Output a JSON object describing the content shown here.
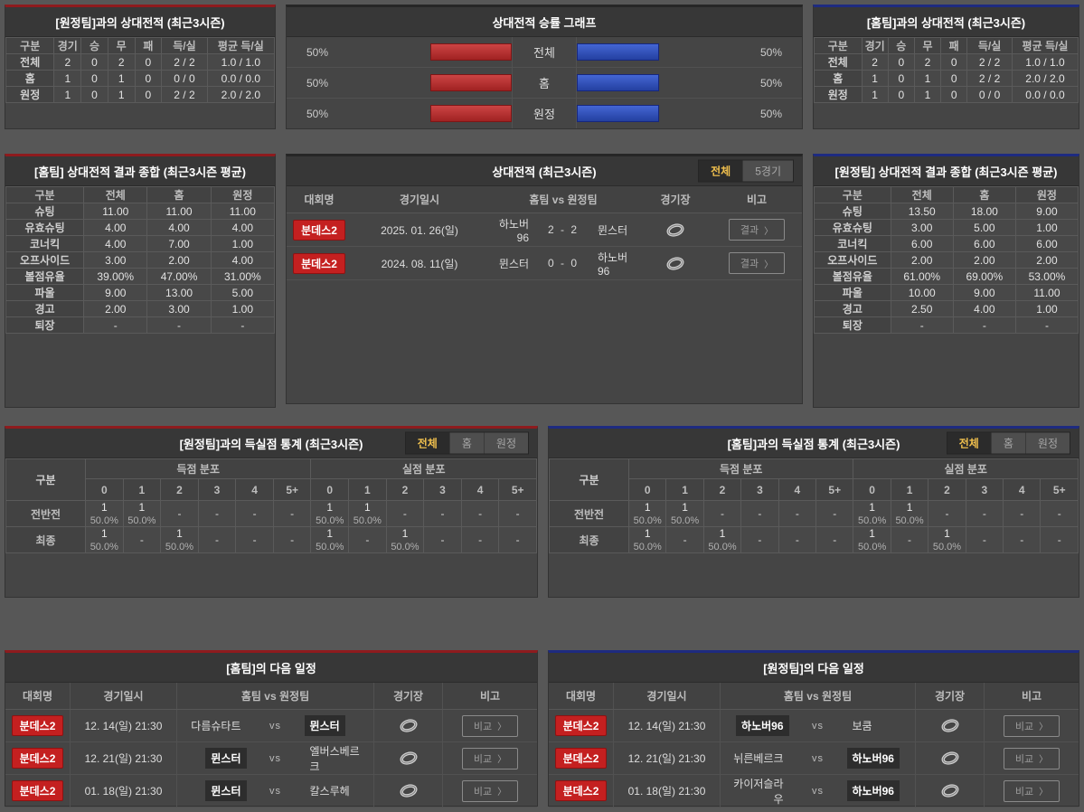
{
  "ui": {
    "chevron": "〉"
  },
  "colors": {
    "accent_red": "#8e1b1e",
    "accent_blue": "#1e2b80",
    "bar_red": "#b93030",
    "bar_blue": "#2f55c0",
    "badge_red": "#c42020",
    "tab_active_text": "#eebe4d"
  },
  "top_left": {
    "title": "[원정팀]과의 상대전적 (최근3시즌)",
    "headers": [
      "구분",
      "경기",
      "승",
      "무",
      "패",
      "득/실",
      "평균 득/실"
    ],
    "rows": [
      {
        "label": "전체",
        "cells": [
          "2",
          "0",
          "2",
          "0",
          "2 / 2",
          "1.0 / 1.0"
        ]
      },
      {
        "label": "홈",
        "cells": [
          "1",
          "0",
          "1",
          "0",
          "0 / 0",
          "0.0 / 0.0"
        ]
      },
      {
        "label": "원정",
        "cells": [
          "1",
          "0",
          "1",
          "0",
          "2 / 2",
          "2.0 / 2.0"
        ]
      }
    ]
  },
  "winrate_chart": {
    "title": "상대전적 승률 그래프",
    "type": "bar",
    "rows": [
      {
        "label": "전체",
        "left_label": "50%",
        "left_value": 50,
        "right_value": 50,
        "right_label": "50%"
      },
      {
        "label": "홈",
        "left_label": "50%",
        "left_value": 50,
        "right_value": 50,
        "right_label": "50%"
      },
      {
        "label": "원정",
        "left_label": "50%",
        "left_value": 50,
        "right_value": 50,
        "right_label": "50%"
      }
    ]
  },
  "top_right": {
    "title": "[홈팀]과의 상대전적 (최근3시즌)",
    "headers": [
      "구분",
      "경기",
      "승",
      "무",
      "패",
      "득/실",
      "평균 득/실"
    ],
    "rows": [
      {
        "label": "전체",
        "cells": [
          "2",
          "0",
          "2",
          "0",
          "2 / 2",
          "1.0 / 1.0"
        ]
      },
      {
        "label": "홈",
        "cells": [
          "1",
          "0",
          "1",
          "0",
          "2 / 2",
          "2.0 / 2.0"
        ]
      },
      {
        "label": "원정",
        "cells": [
          "1",
          "0",
          "1",
          "0",
          "0 / 0",
          "0.0 / 0.0"
        ]
      }
    ]
  },
  "home_summary": {
    "title": "[홈팀] 상대전적 결과 종합 (최근3시즌 평균)",
    "headers": [
      "구분",
      "전체",
      "홈",
      "원정"
    ],
    "rows": [
      {
        "label": "슈팅",
        "cells": [
          "11.00",
          "11.00",
          "11.00"
        ]
      },
      {
        "label": "유효슈팅",
        "cells": [
          "4.00",
          "4.00",
          "4.00"
        ]
      },
      {
        "label": "코너킥",
        "cells": [
          "4.00",
          "7.00",
          "1.00"
        ]
      },
      {
        "label": "오프사이드",
        "cells": [
          "3.00",
          "2.00",
          "4.00"
        ]
      },
      {
        "label": "볼점유율",
        "cells": [
          "39.00%",
          "47.00%",
          "31.00%"
        ]
      },
      {
        "label": "파울",
        "cells": [
          "9.00",
          "13.00",
          "5.00"
        ]
      },
      {
        "label": "경고",
        "cells": [
          "2.00",
          "3.00",
          "1.00"
        ]
      },
      {
        "label": "퇴장",
        "cells": [
          "-",
          "-",
          "-"
        ]
      }
    ]
  },
  "matches": {
    "title": "상대전적 (최근3시즌)",
    "tabs": [
      {
        "label": "전체",
        "name": "tab-all",
        "active": true
      },
      {
        "label": "5경기",
        "name": "tab-5games",
        "active": false
      }
    ],
    "headers": {
      "league": "대회명",
      "datetime": "경기일시",
      "teams": "홈팀  vs  원정팀",
      "stadium": "경기장",
      "note": "비고"
    },
    "rows": [
      {
        "league": "분데스2",
        "datetime": "2025. 01. 26(일)",
        "home": "하노버96",
        "score": "2 - 2",
        "away": "뮌스터",
        "button": "결과"
      },
      {
        "league": "분데스2",
        "datetime": "2024. 08. 11(일)",
        "home": "뮌스터",
        "score": "0 - 0",
        "away": "하노버96",
        "button": "결과"
      }
    ]
  },
  "away_summary": {
    "title": "[원정팀] 상대전적 결과 종합 (최근3시즌 평균)",
    "headers": [
      "구분",
      "전체",
      "홈",
      "원정"
    ],
    "rows": [
      {
        "label": "슈팅",
        "cells": [
          "13.50",
          "18.00",
          "9.00"
        ]
      },
      {
        "label": "유효슈팅",
        "cells": [
          "3.00",
          "5.00",
          "1.00"
        ]
      },
      {
        "label": "코너킥",
        "cells": [
          "6.00",
          "6.00",
          "6.00"
        ]
      },
      {
        "label": "오프사이드",
        "cells": [
          "2.00",
          "2.00",
          "2.00"
        ]
      },
      {
        "label": "볼점유율",
        "cells": [
          "61.00%",
          "69.00%",
          "53.00%"
        ]
      },
      {
        "label": "파울",
        "cells": [
          "10.00",
          "9.00",
          "11.00"
        ]
      },
      {
        "label": "경고",
        "cells": [
          "2.50",
          "4.00",
          "1.00"
        ]
      },
      {
        "label": "퇴장",
        "cells": [
          "-",
          "-",
          "-"
        ]
      }
    ]
  },
  "away_goal_stats": {
    "title": "[원정팀]과의 득실점 통계 (최근3시즌)",
    "tabs": [
      {
        "label": "전체",
        "name": "tab-all",
        "active": true
      },
      {
        "label": "홈",
        "name": "tab-home",
        "active": false
      },
      {
        "label": "원정",
        "name": "tab-away",
        "active": false
      }
    ],
    "corner_label": "구분",
    "groups": [
      "득점 분포",
      "실점 분포"
    ],
    "score_cols": [
      "0",
      "1",
      "2",
      "3",
      "4",
      "5+"
    ],
    "rows": [
      {
        "label": "전반전",
        "scored": [
          [
            "1",
            "50.0%"
          ],
          [
            "1",
            "50.0%"
          ],
          "-",
          "-",
          "-",
          "-"
        ],
        "conceded": [
          [
            "1",
            "50.0%"
          ],
          [
            "1",
            "50.0%"
          ],
          "-",
          "-",
          "-",
          "-"
        ]
      },
      {
        "label": "최종",
        "scored": [
          [
            "1",
            "50.0%"
          ],
          "-",
          [
            "1",
            "50.0%"
          ],
          "-",
          "-",
          "-"
        ],
        "conceded": [
          [
            "1",
            "50.0%"
          ],
          "-",
          [
            "1",
            "50.0%"
          ],
          "-",
          "-",
          "-"
        ]
      }
    ]
  },
  "home_goal_stats": {
    "title": "[홈팀]과의 득실점 통계 (최근3시즌)",
    "tabs": [
      {
        "label": "전체",
        "name": "tab-all",
        "active": true
      },
      {
        "label": "홈",
        "name": "tab-home",
        "active": false
      },
      {
        "label": "원정",
        "name": "tab-away",
        "active": false
      }
    ],
    "corner_label": "구분",
    "groups": [
      "득점 분포",
      "실점 분포"
    ],
    "score_cols": [
      "0",
      "1",
      "2",
      "3",
      "4",
      "5+"
    ],
    "rows": [
      {
        "label": "전반전",
        "scored": [
          [
            "1",
            "50.0%"
          ],
          [
            "1",
            "50.0%"
          ],
          "-",
          "-",
          "-",
          "-"
        ],
        "conceded": [
          [
            "1",
            "50.0%"
          ],
          [
            "1",
            "50.0%"
          ],
          "-",
          "-",
          "-",
          "-"
        ]
      },
      {
        "label": "최종",
        "scored": [
          [
            "1",
            "50.0%"
          ],
          "-",
          [
            "1",
            "50.0%"
          ],
          "-",
          "-",
          "-"
        ],
        "conceded": [
          [
            "1",
            "50.0%"
          ],
          "-",
          [
            "1",
            "50.0%"
          ],
          "-",
          "-",
          "-"
        ]
      }
    ]
  },
  "home_schedule": {
    "title": "[홈팀]의 다음 일정",
    "vs_label": "vs",
    "headers": {
      "league": "대회명",
      "datetime": "경기일시",
      "teams": "홈팀  vs  원정팀",
      "stadium": "경기장",
      "note": "비고"
    },
    "rows": [
      {
        "league": "분데스2",
        "datetime": "12. 14(일) 21:30",
        "home": "다름슈타트",
        "away": "뮌스터",
        "highlight": "away",
        "button": "비교"
      },
      {
        "league": "분데스2",
        "datetime": "12. 21(일) 21:30",
        "home": "뮌스터",
        "away": "엘버스베르크",
        "highlight": "home",
        "button": "비교"
      },
      {
        "league": "분데스2",
        "datetime": "01. 18(일) 21:30",
        "home": "뮌스터",
        "away": "칼스루헤",
        "highlight": "home",
        "button": "비교"
      }
    ]
  },
  "away_schedule": {
    "title": "[원정팀]의 다음 일정",
    "vs_label": "vs",
    "headers": {
      "league": "대회명",
      "datetime": "경기일시",
      "teams": "홈팀  vs  원정팀",
      "stadium": "경기장",
      "note": "비고"
    },
    "rows": [
      {
        "league": "분데스2",
        "datetime": "12. 14(일) 21:30",
        "home": "하노버96",
        "away": "보쿰",
        "highlight": "home",
        "button": "비교"
      },
      {
        "league": "분데스2",
        "datetime": "12. 21(일) 21:30",
        "home": "뉘른베르크",
        "away": "하노버96",
        "highlight": "away",
        "button": "비교"
      },
      {
        "league": "분데스2",
        "datetime": "01. 18(일) 21:30",
        "home": "카이저슬라우",
        "away": "하노버96",
        "highlight": "away",
        "button": "비교"
      }
    ]
  }
}
